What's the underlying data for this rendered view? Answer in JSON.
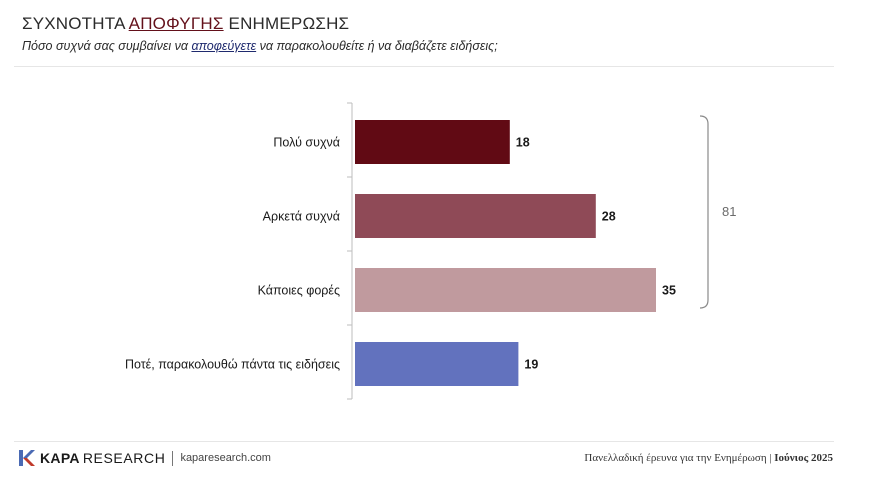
{
  "header": {
    "title_pre": "ΣΥΧΝΟΤΗΤΑ ",
    "title_highlight": "ΑΠΟΦΥΓΗΣ",
    "title_post": " ΕΝΗΜΕΡΩΣΗΣ",
    "subtitle_pre": "Πόσο συχνά σας συμβαίνει να ",
    "subtitle_highlight": "αποφεύγετε",
    "subtitle_post": " να παρακολουθείτε ή να διαβάζετε ειδήσεις;"
  },
  "chart_data": {
    "type": "bar",
    "orientation": "horizontal",
    "categories": [
      "Πολύ συχνά",
      "Αρκετά συχνά",
      "Κάποιες φορές",
      "Ποτέ, παρακολουθώ πάντα τις ειδήσεις"
    ],
    "values": [
      18,
      28,
      35,
      19
    ],
    "value_labels": [
      "18",
      "28",
      "35",
      "19"
    ],
    "bar_colors": [
      "#610a14",
      "#8f4a57",
      "#c09a9e",
      "#6272be"
    ],
    "xlim": [
      0,
      40
    ],
    "grid": false,
    "bracket": {
      "categories": [
        "Πολύ συχνά",
        "Αρκετά συχνά",
        "Κάποιες φορές"
      ],
      "label": "81"
    }
  },
  "footer": {
    "logo_kapa": "KAPA",
    "logo_research": "RESEARCH",
    "url": "kaparesearch.com",
    "survey_text": "Πανελλαδική έρευνα για την Ενημέρωση",
    "separator": "|",
    "date": "Ιούνιος 2025"
  }
}
